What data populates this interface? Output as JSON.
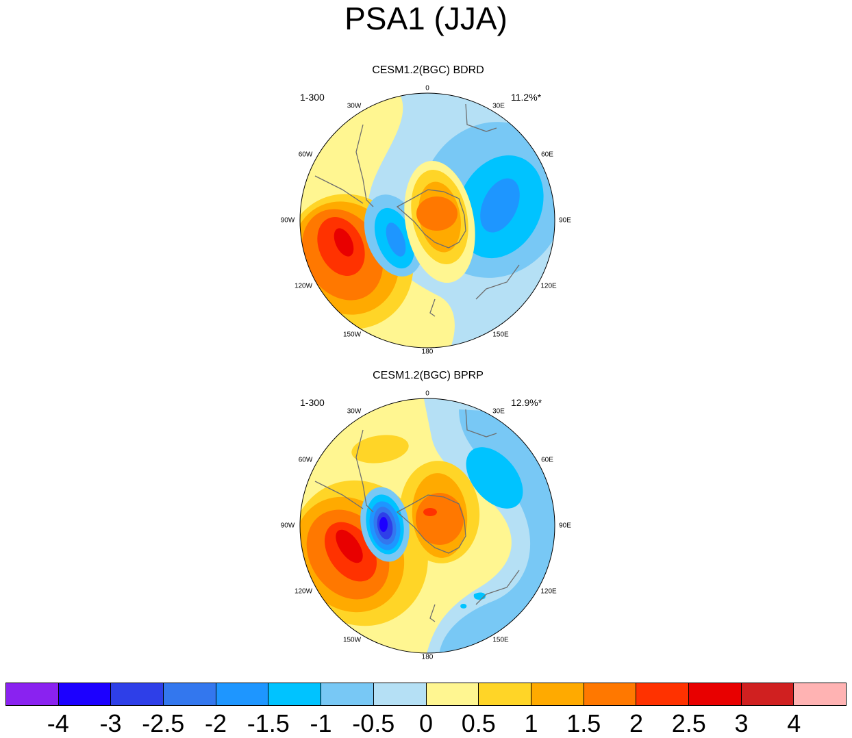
{
  "title": "PSA1 (JJA)",
  "panels": [
    {
      "title": "CESM1.2(BGC) BDRD",
      "left_label": "1-300",
      "right_label": "11.2%*",
      "longitude_labels": {
        "lon_0": "0",
        "lon_30E": "30E",
        "lon_60E": "60E",
        "lon_90E": "90E",
        "lon_120E": "120E",
        "lon_150E": "150E",
        "lon_180": "180",
        "lon_150W": "150W",
        "lon_120W": "120W",
        "lon_90W": "90W",
        "lon_60W": "60W",
        "lon_30W": "30W"
      }
    },
    {
      "title": "CESM1.2(BGC) BPRP",
      "left_label": "1-300",
      "right_label": "12.9%*",
      "longitude_labels": {
        "lon_0": "0",
        "lon_30E": "30E",
        "lon_60E": "60E",
        "lon_90E": "90E",
        "lon_120E": "120E",
        "lon_150E": "150E",
        "lon_180": "180",
        "lon_150W": "150W",
        "lon_120W": "120W",
        "lon_90W": "90W",
        "lon_60W": "60W",
        "lon_30W": "30W"
      }
    }
  ],
  "colorbar": {
    "ticks": [
      "-4",
      "-3",
      "-2.5",
      "-2",
      "-1.5",
      "-1",
      "-0.5",
      "0",
      "0.5",
      "1",
      "1.5",
      "2",
      "2.5",
      "3",
      "4"
    ],
    "colors": [
      "#8A22F0",
      "#1C00FF",
      "#2E3FE8",
      "#3377EE",
      "#1E96FF",
      "#00C3FF",
      "#78C8F5",
      "#B5E0F5",
      "#FFF691",
      "#FFD527",
      "#FFAA00",
      "#FF7800",
      "#FF3200",
      "#E80000",
      "#D02020",
      "#FFB3B3"
    ]
  },
  "palette": {
    "c_n4": "#8A22F0",
    "c_n3": "#1C00FF",
    "c_n25": "#2E3FE8",
    "c_n2": "#3377EE",
    "c_n15": "#1E96FF",
    "c_n1": "#00C3FF",
    "c_n05": "#78C8F5",
    "c_0": "#B5E0F5",
    "c_05": "#FFF691",
    "c_1": "#FFD527",
    "c_15": "#FFAA00",
    "c_2": "#FF7800",
    "c_25": "#FF3200",
    "c_3": "#E80000",
    "coast": "#6E6E6E"
  }
}
